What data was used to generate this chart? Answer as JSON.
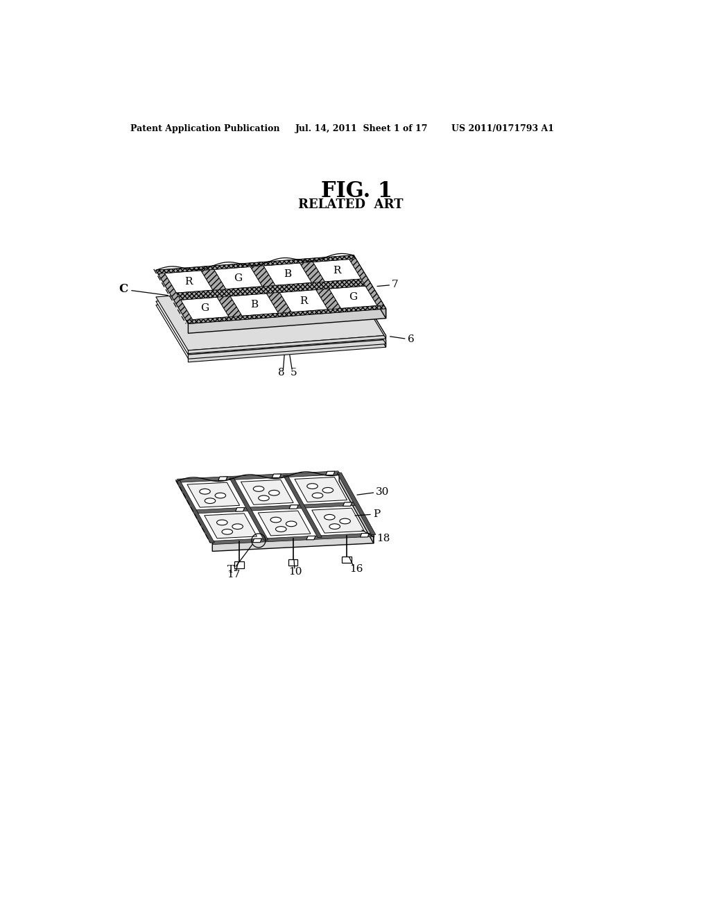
{
  "bg_color": "#ffffff",
  "header_text": "Patent Application Publication",
  "header_date": "Jul. 14, 2011  Sheet 1 of 17",
  "header_patent": "US 2011/0171793 A1",
  "fig_title": "FIG. 1",
  "fig_subtitle": "RELATED  ART",
  "label_C": "C",
  "label_7": "7",
  "label_6": "6",
  "label_8": "8",
  "label_5": "5",
  "label_30": "30",
  "label_P": "P",
  "label_18": "18",
  "label_T": "T",
  "label_17": "17",
  "label_10": "10",
  "label_16": "16",
  "color_labels_top": [
    [
      "G",
      "B",
      "R",
      "G"
    ],
    [
      "R",
      "G",
      "B",
      "R"
    ]
  ]
}
